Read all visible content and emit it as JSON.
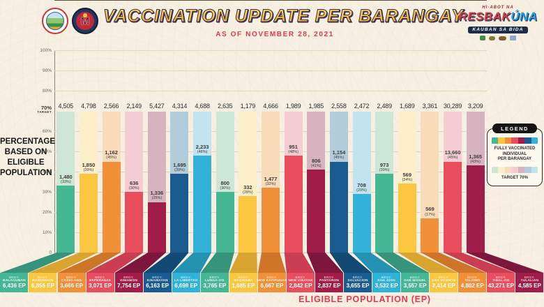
{
  "header": {
    "title": "VACCINATION UPDATE PER BARANGAY",
    "subtitle": "AS OF NOVEMBER 28, 2021",
    "resbakuna": {
      "tagline": "HI-ABOT NA",
      "brand_red": "RESBAK",
      "brand_blue": "ÚNA",
      "banner": "KAUBAN SA BIDA"
    },
    "accent_red": "#e6394c"
  },
  "chart_data": {
    "type": "bar",
    "title": "VACCINATION UPDATE PER BARANGAY",
    "subtitle": "AS OF NOVEMBER 28, 2021",
    "ylabel": "PERCENTAGE BASED ON ELIGIBLE POPULATION",
    "ylabel_lines": [
      "PERCENTAGE",
      "BASED ON",
      "ELIGIBLE",
      "POPULATION"
    ],
    "xlabel": "ELIGIBLE POPULATION (EP)",
    "ylim": [
      0,
      100
    ],
    "grid": true,
    "yticks": [
      "100%",
      "90%",
      "80%",
      "70%",
      "60%",
      "50%",
      "40%",
      "30%",
      "20%",
      "10%",
      "0"
    ],
    "target": {
      "value": 70,
      "pct_label": "70%",
      "word": "TARGET"
    },
    "brgy_prefix": "BRGY.",
    "ep_suffix": "EP",
    "categories": [
      "BALAGUNAN",
      "BOBONGON",
      "CASIG-ANG",
      "ESPERANZA",
      "KIMAMON",
      "KINAMAYAN",
      "LA LIBERTAD",
      "LUNGA-OG",
      "MAGWAWA",
      "NEW KATIPUNAN",
      "NEW VISAYAS",
      "PANTARON",
      "SALVACION",
      "SAN JOSE",
      "SAN MIGUEL",
      "SAN VICENTE",
      "TALOMO",
      "TIBAL-OG",
      "TULALIAN"
    ],
    "bars": [
      {
        "name": "BALAGUNAN",
        "ep": "6,436",
        "target_70": "4,505",
        "vaccinated": "1,480",
        "pct": 33
      },
      {
        "name": "BOBONGON",
        "ep": "6,855",
        "target_70": "4,798",
        "vaccinated": "1,850",
        "pct": 39
      },
      {
        "name": "CASIG-ANG",
        "ep": "3,666",
        "target_70": "2,566",
        "vaccinated": "1,162",
        "pct": 45
      },
      {
        "name": "ESPERANZA",
        "ep": "3,071",
        "target_70": "2,149",
        "vaccinated": "636",
        "pct": 30
      },
      {
        "name": "KIMAMON",
        "ep": "7,754",
        "target_70": "5,427",
        "vaccinated": "1,336",
        "pct": 25
      },
      {
        "name": "KINAMAYAN",
        "ep": "6,163",
        "target_70": "4,314",
        "vaccinated": "1,695",
        "pct": 39
      },
      {
        "name": "LA LIBERTAD",
        "ep": "6,698",
        "target_70": "4,688",
        "vaccinated": "2,233",
        "pct": 48
      },
      {
        "name": "LUNGA-OG",
        "ep": "3,765",
        "target_70": "2,635",
        "vaccinated": "800",
        "pct": 30
      },
      {
        "name": "MAGWAWA",
        "ep": "1,685",
        "target_70": "1,179",
        "vaccinated": "332",
        "pct": 28
      },
      {
        "name": "NEW KATIPUNAN",
        "ep": "6,667",
        "target_70": "4,666",
        "vaccinated": "1,477",
        "pct": 32
      },
      {
        "name": "NEW VISAYAS",
        "ep": "2,842",
        "target_70": "1,989",
        "vaccinated": "951",
        "pct": 48
      },
      {
        "name": "PANTARON",
        "ep": "2,837",
        "target_70": "1,985",
        "vaccinated": "806",
        "pct": 41
      },
      {
        "name": "SALVACION",
        "ep": "3,655",
        "target_70": "2,558",
        "vaccinated": "1,154",
        "pct": 45
      },
      {
        "name": "SAN JOSE",
        "ep": "3,532",
        "target_70": "2,472",
        "vaccinated": "708",
        "pct": 29
      },
      {
        "name": "SAN MIGUEL",
        "ep": "3,557",
        "target_70": "2,489",
        "vaccinated": "973",
        "pct": 39
      },
      {
        "name": "SAN VICENTE",
        "ep": "2,414",
        "target_70": "1,689",
        "vaccinated": "569",
        "pct": 34
      },
      {
        "name": "TALOMO",
        "ep": "4,802",
        "target_70": "3,361",
        "vaccinated": "569",
        "pct": 17
      },
      {
        "name": "TIBAL-OG",
        "ep": "43,271",
        "target_70": "30,289",
        "vaccinated": "13,660",
        "pct": 45
      },
      {
        "name": "TULALIAN",
        "ep": "4,585",
        "target_70": "3,209",
        "vaccinated": "1,365",
        "pct": 43
      }
    ],
    "palette": {
      "solid": [
        "#45b893",
        "#fbc640",
        "#f29038",
        "#e94e5e",
        "#a01d4a",
        "#1a5c8f",
        "#31b3d8"
      ],
      "pale": [
        "#cde7d6",
        "#fbeec8",
        "#f8dcba",
        "#f4cdd3",
        "#d7b3c0",
        "#b3ccd9",
        "#c2e4ee"
      ],
      "dark": [
        "#35947a",
        "#d9a430",
        "#cf7527",
        "#cb3d50",
        "#7c163a",
        "#134a73",
        "#2492b1"
      ]
    },
    "legend": {
      "header": "LEGEND",
      "solid_label_lines": [
        "FULLY VACCINATED",
        "INDIVIDUAL",
        "PER BARANGAY"
      ],
      "target_label": "TARGET 70%",
      "position": "right"
    }
  }
}
